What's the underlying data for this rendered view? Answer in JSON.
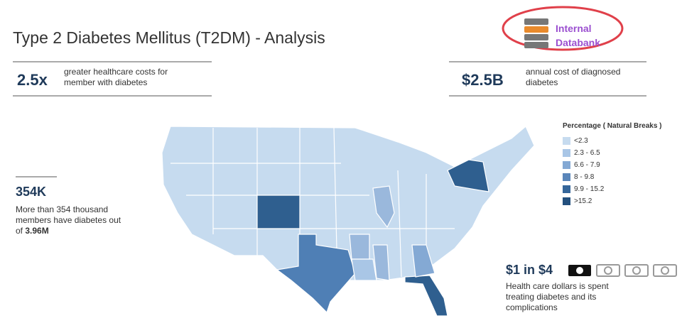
{
  "header": {
    "title": "Type 2 Diabetes Mellitus (T2DM)  - Analysis"
  },
  "badge": {
    "line1": "Internal",
    "line2": "Databank"
  },
  "stats": [
    {
      "value": "2.5x",
      "text": "greater healthcare costs for member with diabetes"
    },
    {
      "value": "$2.5B",
      "text": "annual cost of diagnosed diabetes"
    },
    {
      "value": "354K",
      "text": "More than 354 thousand members have diabetes out of",
      "bold": "3.96M"
    },
    {
      "value": "$1 in $4",
      "text": "Health care dollars is spent treating diabetes and its complications"
    }
  ],
  "legend": {
    "title": "Percentage ( Natural Breaks )",
    "items": [
      {
        "label": "<2.3",
        "color": "#c6dbef"
      },
      {
        "label": "2.3 - 6.5",
        "color": "#a9c6e6"
      },
      {
        "label": "6.6 - 7.9",
        "color": "#84a9d4"
      },
      {
        "label": "8 - 9.8",
        "color": "#5a86ba"
      },
      {
        "label": "9.9 - 15.2",
        "color": "#35669a"
      },
      {
        "label": ">15.2",
        "color": "#23507e"
      }
    ]
  }
}
